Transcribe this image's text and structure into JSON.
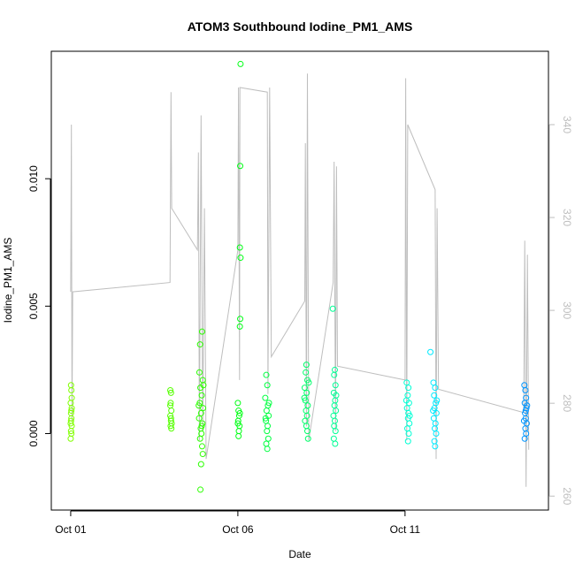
{
  "chart_data": {
    "type": "scatter",
    "title": "ATOM3 Southbound Iodine_PM1_AMS",
    "x_label": "Date",
    "y_label": "Iodine_PM1_AMS",
    "xlim": [
      -0.58,
      14.29
    ],
    "xticks": [
      {
        "value": 0,
        "label": "Oct 01"
      },
      {
        "value": 5,
        "label": "Oct 06"
      },
      {
        "value": 10,
        "label": "Oct 11"
      }
    ],
    "ylim": [
      -0.003,
      0.015
    ],
    "yticks": [
      {
        "value": 0,
        "label": "0.000"
      },
      {
        "value": 0.005,
        "label": "0.005"
      },
      {
        "value": 0.01,
        "label": "0.010"
      }
    ],
    "y2lim": [
      257,
      355.8
    ],
    "y2ticks": [
      260,
      280,
      300,
      320,
      340
    ],
    "series": [
      {
        "color": "#80ff00",
        "x": [
          0.01,
          0.02,
          0.0,
          0.03,
          0.01,
          0.02,
          0.0,
          0.03,
          0.01,
          0.02,
          0.0,
          0.03,
          0.02,
          0.01
        ],
        "values": [
          0.0019,
          0.0017,
          0.0012,
          0.001,
          0.0008,
          0.0006,
          0.0004,
          0.0003,
          0.0001,
          0.0,
          -0.0002,
          0.0014,
          0.0009,
          0.0005
        ]
      },
      {
        "color": "#55ff00",
        "x": [
          2.98,
          3.0,
          2.99,
          3.01,
          2.98,
          3.0,
          3.02,
          2.99,
          3.01,
          3.0,
          2.98
        ],
        "values": [
          0.0017,
          0.0016,
          0.0012,
          0.0009,
          0.0007,
          0.0005,
          0.0004,
          0.0003,
          0.0002,
          0.0006,
          0.0011
        ]
      },
      {
        "color": "#2bff00",
        "x": [
          3.93,
          3.87,
          3.85,
          3.95,
          3.88,
          3.92,
          3.86,
          3.96,
          3.9,
          3.84,
          3.94,
          3.89,
          3.91,
          3.87,
          3.93,
          3.95,
          3.9,
          3.88,
          3.97,
          3.83,
          3.92
        ],
        "values": [
          0.004,
          0.0035,
          0.0024,
          0.0021,
          0.0018,
          0.0015,
          0.0012,
          0.001,
          0.0008,
          0.0006,
          0.0004,
          0.0002,
          0.0,
          -0.0002,
          -0.0005,
          -0.0008,
          -0.0012,
          -0.0022,
          0.0019,
          0.0011,
          0.0003
        ]
      },
      {
        "color": "#00ff15",
        "x": [
          5.08,
          5.07,
          5.06,
          5.08,
          5.07,
          5.06,
          5.0,
          5.02,
          5.04,
          5.01,
          5.05,
          5.03,
          5.02,
          5.0,
          5.06
        ],
        "values": [
          0.0145,
          0.0105,
          0.0073,
          0.0069,
          0.0045,
          0.0042,
          0.0012,
          0.0009,
          0.0007,
          0.0005,
          0.0003,
          0.0001,
          -0.0001,
          0.0004,
          0.0008
        ]
      },
      {
        "color": "#00ff40",
        "x": [
          5.85,
          5.88,
          5.82,
          5.9,
          5.86,
          5.92,
          5.84,
          5.89,
          5.87,
          5.91,
          5.85,
          5.88,
          5.93,
          5.83
        ],
        "values": [
          0.0023,
          0.0019,
          0.0014,
          0.0011,
          0.0009,
          0.0007,
          0.0005,
          0.0003,
          0.0001,
          -0.0002,
          -0.0004,
          -0.0006,
          0.0012,
          0.0006
        ]
      },
      {
        "color": "#00ff6a",
        "x": [
          7.05,
          7.03,
          7.08,
          7.0,
          7.06,
          7.02,
          7.09,
          7.04,
          7.07,
          7.01,
          7.05,
          7.08,
          7.1,
          7.12,
          6.99
        ],
        "values": [
          0.0027,
          0.0024,
          0.0021,
          0.0018,
          0.0016,
          0.0013,
          0.0011,
          0.0009,
          0.0007,
          0.0005,
          0.0003,
          0.0001,
          -0.0002,
          0.002,
          0.0014
        ]
      },
      {
        "color": "#00ff95",
        "x": [
          7.84,
          7.9,
          7.88,
          7.92,
          7.87,
          7.91,
          7.89,
          7.93,
          7.86,
          7.9,
          7.88,
          7.92,
          7.87,
          7.91,
          7.94
        ],
        "values": [
          0.0049,
          0.0025,
          0.0023,
          0.0019,
          0.0016,
          0.0013,
          0.0011,
          0.0009,
          0.0007,
          0.0005,
          0.0003,
          0.0001,
          -0.0002,
          -0.0004,
          0.0015
        ]
      },
      {
        "color": "#00ffd5",
        "x": [
          10.05,
          10.1,
          10.08,
          10.12,
          10.06,
          10.1,
          10.09,
          10.13,
          10.07,
          10.11,
          10.09,
          10.04,
          10.14
        ],
        "values": [
          0.002,
          0.0018,
          0.0015,
          0.0012,
          0.001,
          0.0008,
          0.0006,
          0.0004,
          0.0002,
          0.0,
          -0.0003,
          0.0013,
          0.0007
        ]
      },
      {
        "color": "#00eaff",
        "x": [
          10.76,
          10.85,
          10.9,
          10.87,
          10.92,
          10.88,
          10.94,
          10.86,
          10.91,
          10.89,
          10.93,
          10.88,
          10.9,
          10.95,
          10.84
        ],
        "values": [
          0.0032,
          0.002,
          0.0018,
          0.0015,
          0.0012,
          0.001,
          0.0008,
          0.0006,
          0.0004,
          0.0002,
          0.0,
          -0.0003,
          -0.0005,
          0.0013,
          0.0009
        ]
      },
      {
        "color": "#0095ff",
        "x": [
          13.57,
          13.6,
          13.62,
          13.58,
          13.63,
          13.59,
          13.61,
          13.64,
          13.6,
          13.62,
          13.58,
          13.65,
          13.56,
          13.61
        ],
        "values": [
          0.0019,
          0.0017,
          0.0014,
          0.0012,
          0.001,
          0.0008,
          0.0006,
          0.0004,
          0.0002,
          0.0,
          -0.0002,
          0.0011,
          0.0005,
          0.0009
        ]
      },
      {
        "type": "line",
        "axis": "y2",
        "color": "#bebebe",
        "x": [
          0.0,
          0.02,
          0.04,
          0.06,
          2.97,
          3.0,
          3.02,
          3.79,
          3.82,
          3.85,
          3.9,
          3.95,
          4.0,
          4.05,
          5.0,
          5.02,
          5.05,
          5.06,
          5.88,
          5.9,
          5.95,
          6.0,
          7.0,
          7.02,
          7.05,
          7.08,
          7.12,
          7.85,
          7.88,
          7.92,
          7.95,
          7.98,
          10.0,
          10.02,
          10.05,
          10.08,
          10.9,
          10.93,
          10.96,
          11.0,
          13.55,
          13.58,
          13.62,
          13.66,
          13.7
        ],
        "values": [
          304,
          340,
          276,
          304,
          306,
          347,
          322,
          313,
          334,
          272,
          342,
          274,
          322,
          268,
          313,
          348,
          285,
          348,
          347,
          282,
          348,
          290,
          302,
          336,
          275,
          351,
          272,
          306,
          332,
          274,
          331,
          288,
          285,
          350,
          272,
          340,
          326,
          268,
          322,
          283,
          278,
          315,
          262,
          312,
          270
        ]
      }
    ]
  }
}
